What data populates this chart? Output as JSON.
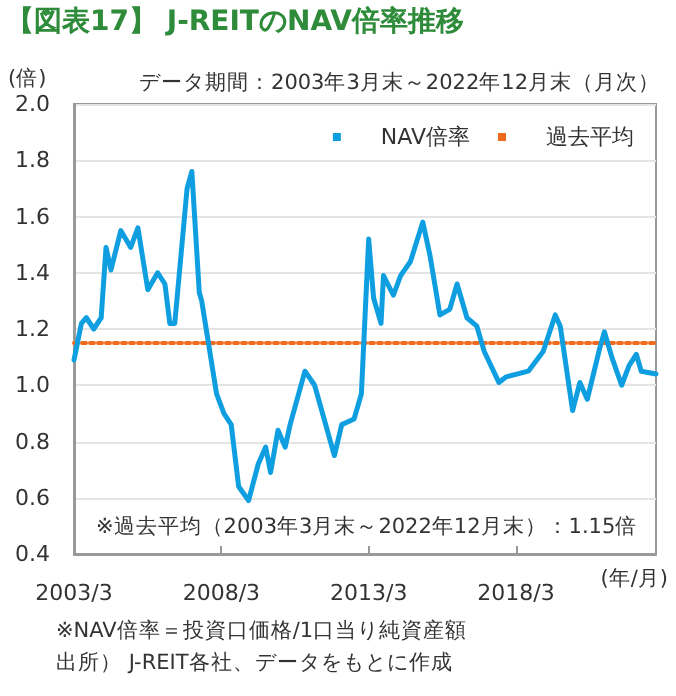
{
  "chart_data": {
    "type": "line",
    "title": "【図表17】 J-REITのNAV倍率推移",
    "subtitle": "データ期間：2003年3月末～2022年12月末（月次）",
    "ylabel": "(倍)",
    "xlabel": "(年/月)",
    "annotations": [
      "※過去平均（2003年3月末～2022年12月末）：1.15倍",
      "※NAV倍率＝投資口価格/1口当り純資産額",
      "出所） J-REIT各社、データをもとに作成"
    ],
    "xlim": [
      "2003-03",
      "2022-12"
    ],
    "xticks": [
      {
        "value": "2003-03",
        "label": "2003/3"
      },
      {
        "value": "2008-03",
        "label": "2008/3"
      },
      {
        "value": "2013-03",
        "label": "2013/3"
      },
      {
        "value": "2018-03",
        "label": "2018/3"
      }
    ],
    "ylim": [
      0.4,
      2.0
    ],
    "yticks": [
      0.4,
      0.6,
      0.8,
      {
        "value": 1.0,
        "label": "1.0"
      },
      1.2,
      1.4,
      1.6,
      1.8,
      {
        "value": 2.0,
        "label": "2.0"
      }
    ],
    "grid": "y",
    "legend": "top right",
    "marker": "none",
    "series": [
      {
        "name": "NAV倍率",
        "color": "#0f9fe0",
        "line_style": "solid",
        "x": [
          "2003-03",
          "2003-06",
          "2003-08",
          "2003-11",
          "2004-02",
          "2004-04",
          "2004-06",
          "2004-10",
          "2005-02",
          "2005-05",
          "2005-09",
          "2006-01",
          "2006-04",
          "2006-06",
          "2006-08",
          "2007-01",
          "2007-03",
          "2007-06",
          "2007-07",
          "2008-01",
          "2008-04",
          "2008-07",
          "2008-10",
          "2009-02",
          "2009-06",
          "2009-09",
          "2009-11",
          "2010-02",
          "2010-05",
          "2010-07",
          "2011-01",
          "2011-05",
          "2012-01",
          "2012-04",
          "2012-09",
          "2012-12",
          "2013-03",
          "2013-05",
          "2013-08",
          "2013-09",
          "2014-01",
          "2014-04",
          "2014-08",
          "2015-01",
          "2015-04",
          "2015-08",
          "2015-12",
          "2016-03",
          "2016-07",
          "2016-11",
          "2017-02",
          "2017-08",
          "2017-11",
          "2018-08",
          "2019-02",
          "2019-07",
          "2019-09",
          "2020-02",
          "2020-05",
          "2020-08",
          "2021-01",
          "2021-03",
          "2021-06",
          "2021-10",
          "2022-01",
          "2022-04",
          "2022-06",
          "2022-12"
        ],
        "values": [
          1.09,
          1.22,
          1.24,
          1.2,
          1.24,
          1.49,
          1.41,
          1.55,
          1.49,
          1.56,
          1.34,
          1.4,
          1.36,
          1.22,
          1.22,
          1.7,
          1.76,
          1.33,
          1.3,
          0.97,
          0.9,
          0.86,
          0.64,
          0.59,
          0.72,
          0.78,
          0.69,
          0.84,
          0.78,
          0.86,
          1.05,
          1.0,
          0.75,
          0.86,
          0.88,
          0.97,
          1.52,
          1.31,
          1.22,
          1.39,
          1.32,
          1.39,
          1.44,
          1.58,
          1.46,
          1.25,
          1.27,
          1.36,
          1.24,
          1.21,
          1.12,
          1.01,
          1.03,
          1.05,
          1.12,
          1.25,
          1.21,
          0.91,
          1.01,
          0.95,
          1.13,
          1.19,
          1.1,
          1.0,
          1.07,
          1.11,
          1.05,
          1.04
        ]
      },
      {
        "name": "過去平均",
        "color": "#ee6a1c",
        "line_style": "dotted",
        "x": [
          "2003-03",
          "2022-12"
        ],
        "values": [
          1.15,
          1.15
        ]
      }
    ]
  }
}
